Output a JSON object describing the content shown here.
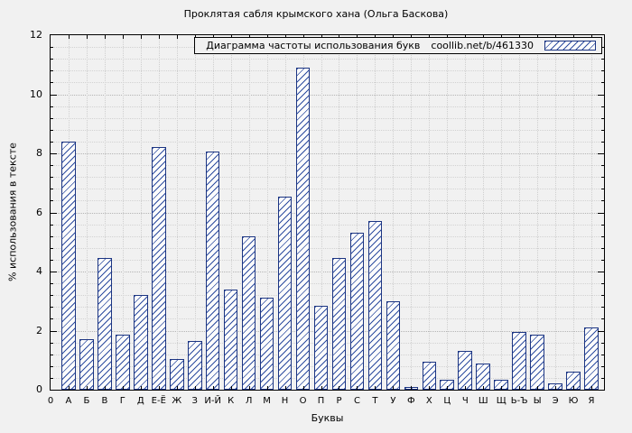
{
  "page": {
    "background": "#f1f1f1"
  },
  "chart_data": {
    "type": "bar",
    "title": "Проклятая сабля крымского хана (Ольга Баскова)",
    "legend_label": "Диаграмма частоты использования букв",
    "legend_url": "coollib.net/b/461330",
    "xlabel": "Буквы",
    "ylabel": "% использования в тексте",
    "ylim": [
      0,
      12
    ],
    "yticks": [
      0,
      2,
      4,
      6,
      8,
      10,
      12
    ],
    "ytick_minor_step": 0.4,
    "origin_label": "0",
    "grid": true,
    "legend_position": "top-right-inside",
    "bar_style": {
      "fill": "#fcfcfc",
      "hatch_color": "#2e4da0",
      "border_color": "#1c3582",
      "hatch": "diagonal"
    },
    "categories": [
      "А",
      "Б",
      "В",
      "Г",
      "Д",
      "Е-Ё",
      "Ж",
      "З",
      "И-Й",
      "К",
      "Л",
      "М",
      "Н",
      "О",
      "П",
      "Р",
      "С",
      "Т",
      "У",
      "Ф",
      "Х",
      "Ц",
      "Ч",
      "Ш",
      "Щ",
      "Ь-Ъ",
      "Ы",
      "Э",
      "Ю",
      "Я"
    ],
    "values": [
      8.4,
      1.7,
      4.45,
      1.85,
      3.2,
      8.2,
      1.05,
      1.65,
      8.05,
      3.4,
      5.2,
      3.1,
      6.55,
      10.9,
      2.85,
      4.45,
      5.3,
      5.7,
      3.0,
      0.1,
      0.95,
      0.35,
      1.3,
      0.9,
      0.35,
      1.95,
      1.85,
      0.2,
      0.6,
      2.1
    ]
  }
}
